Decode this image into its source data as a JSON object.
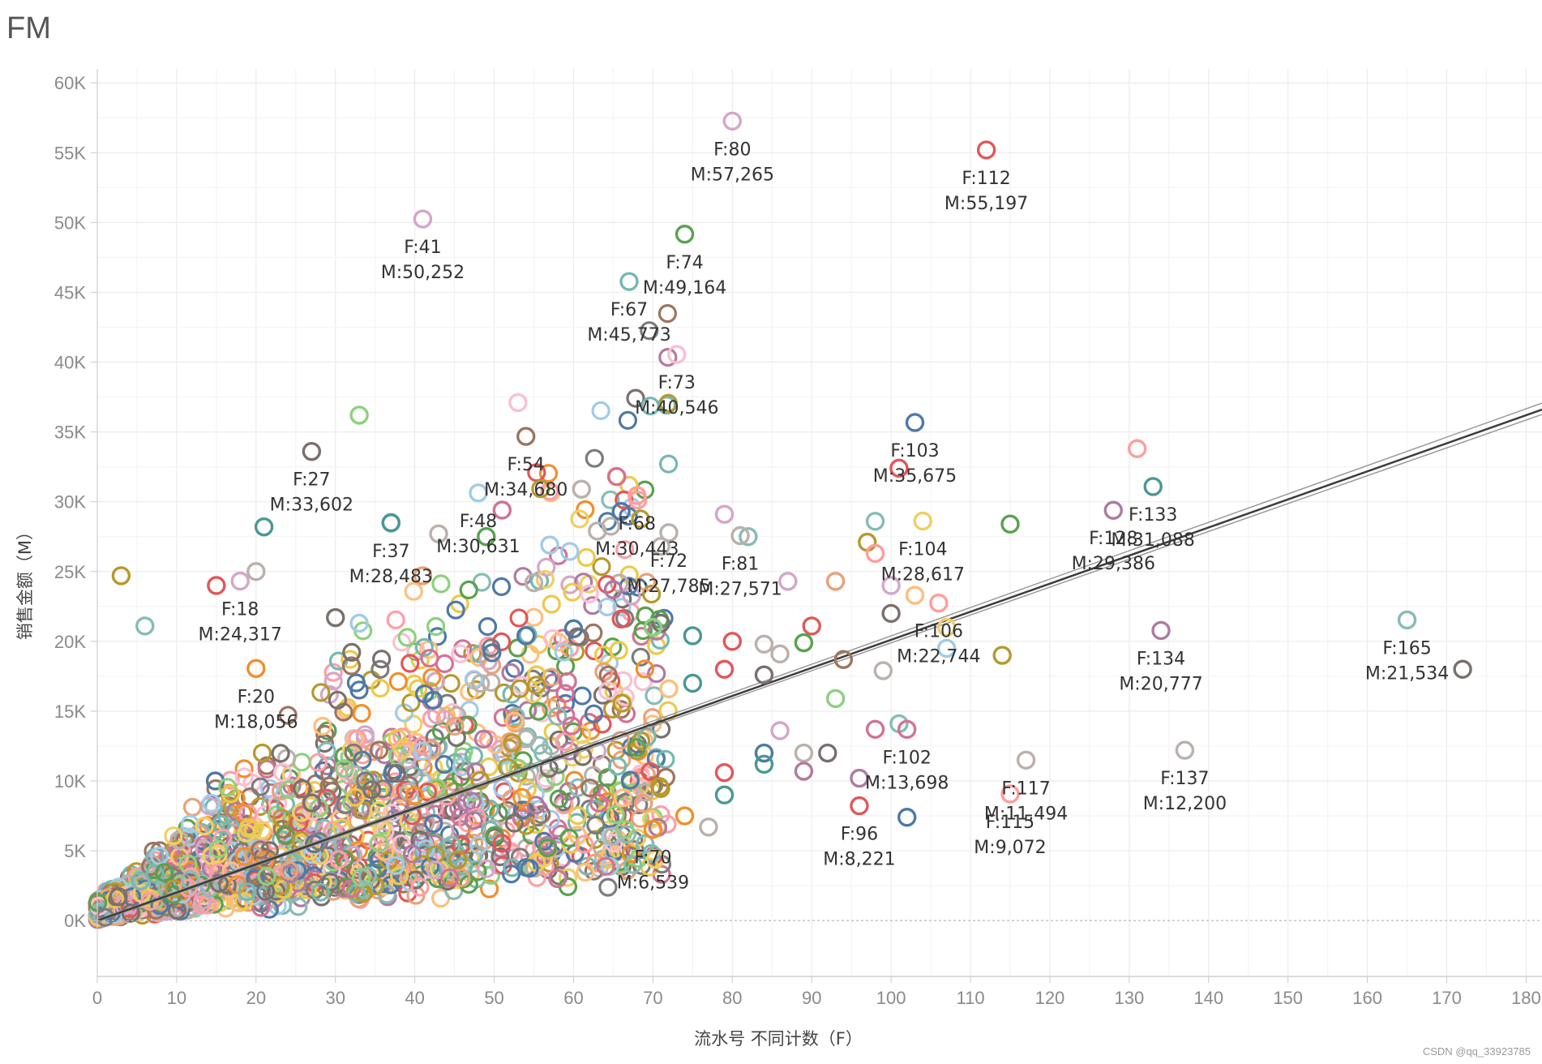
{
  "page": {
    "title": "FM",
    "watermark": "CSDN @qq_33923785"
  },
  "chart_data": {
    "type": "scatter",
    "title": "FM",
    "xlabel": "流水号 不同计数（F）",
    "ylabel": "销售金额（M）",
    "xlim": [
      0,
      182
    ],
    "ylim": [
      -4000,
      61000
    ],
    "xticks": [
      0,
      10,
      20,
      30,
      40,
      50,
      60,
      70,
      80,
      90,
      100,
      110,
      120,
      130,
      140,
      150,
      160,
      170,
      180
    ],
    "xtick_labels": [
      "0",
      "10",
      "20",
      "30",
      "40",
      "50",
      "60",
      "70",
      "80",
      "90",
      "100",
      "110",
      "120",
      "130",
      "140",
      "150",
      "160",
      "170",
      "180"
    ],
    "yticks": [
      0,
      5000,
      10000,
      15000,
      20000,
      25000,
      30000,
      35000,
      40000,
      45000,
      50000,
      55000,
      60000
    ],
    "ytick_labels": [
      "0K",
      "5K",
      "10K",
      "15K",
      "20K",
      "25K",
      "30K",
      "35K",
      "40K",
      "45K",
      "50K",
      "55K",
      "60K"
    ],
    "grid": true,
    "marker": "hollow-circle",
    "palette": [
      "#4e79a7",
      "#f28e2b",
      "#e15759",
      "#76b7b2",
      "#59a14f",
      "#edc948",
      "#b07aa1",
      "#ff9da7",
      "#9c755f",
      "#bab0ac",
      "#a0cbe8",
      "#ffbe7d",
      "#8cd17d",
      "#b6992d",
      "#f1ce63",
      "#86bcb6",
      "#d37295",
      "#fabfd2",
      "#79706e",
      "#d4a6c8",
      "#e9a17a",
      "#7c7c7c"
    ],
    "trend_line": {
      "type": "linear",
      "x": [
        0,
        182
      ],
      "y": [
        0,
        36600
      ],
      "color": "#3c3c3c",
      "band_color": "#9a9a9a"
    },
    "annotated_points": [
      {
        "f": 80,
        "m": 57265,
        "label_f": "F:80",
        "label_m": "M:57,265",
        "color": "#d4a6c8"
      },
      {
        "f": 112,
        "m": 55197,
        "label_f": "F:112",
        "label_m": "M:55,197",
        "color": "#e15759"
      },
      {
        "f": 41,
        "m": 50252,
        "label_f": "F:41",
        "label_m": "M:50,252",
        "color": "#d4a6c8"
      },
      {
        "f": 74,
        "m": 49164,
        "label_f": "F:74",
        "label_m": "M:49,164",
        "color": "#59a14f"
      },
      {
        "f": 67,
        "m": 45773,
        "label_f": "F:67",
        "label_m": "M:45,773",
        "color": "#76b7b2"
      },
      {
        "f": 73,
        "m": 40546,
        "label_f": "F:73",
        "label_m": "M:40,546",
        "color": "#fabfd2"
      },
      {
        "f": 103,
        "m": 35675,
        "label_f": "F:103",
        "label_m": "M:35,675",
        "color": "#4e79a7"
      },
      {
        "f": 54,
        "m": 34680,
        "label_f": "F:54",
        "label_m": "M:34,680",
        "color": "#9c755f"
      },
      {
        "f": 27,
        "m": 33602,
        "label_f": "F:27",
        "label_m": "M:33,602",
        "color": "#79706e"
      },
      {
        "f": 133,
        "m": 31088,
        "label_f": "F:133",
        "label_m": "M:31,088",
        "color": "#499894"
      },
      {
        "f": 48,
        "m": 30631,
        "label_f": "F:48",
        "label_m": "M:30,631",
        "color": "#a0cbe8"
      },
      {
        "f": 68,
        "m": 30443,
        "label_f": "F:68",
        "label_m": "M:30,443",
        "color": "#ff9d9a"
      },
      {
        "f": 128,
        "m": 29386,
        "label_f": "F:128",
        "label_m": "M:29,386",
        "color": "#b07aa1"
      },
      {
        "f": 104,
        "m": 28617,
        "label_f": "F:104",
        "label_m": "M:28,617",
        "color": "#f1ce63"
      },
      {
        "f": 37,
        "m": 28483,
        "label_f": "F:37",
        "label_m": "M:28,483",
        "color": "#499894"
      },
      {
        "f": 72,
        "m": 27785,
        "label_f": "F:72",
        "label_m": "M:27,785",
        "color": "#bab0ac"
      },
      {
        "f": 81,
        "m": 27571,
        "label_f": "F:81",
        "label_m": "M:27,571",
        "color": "#bab0ac"
      },
      {
        "f": 18,
        "m": 24317,
        "label_f": "F:18",
        "label_m": "M:24,317",
        "color": "#d4a6c8"
      },
      {
        "f": 106,
        "m": 22744,
        "label_f": "F:106",
        "label_m": "M:22,744",
        "color": "#ff9d9a"
      },
      {
        "f": 165,
        "m": 21534,
        "label_f": "F:165",
        "label_m": "M:21,534",
        "color": "#86bcb6"
      },
      {
        "f": 134,
        "m": 20777,
        "label_f": "F:134",
        "label_m": "M:20,777",
        "color": "#b07aa1"
      },
      {
        "f": 20,
        "m": 18056,
        "label_f": "F:20",
        "label_m": "M:18,056",
        "color": "#f28e2b"
      },
      {
        "f": 102,
        "m": 13698,
        "label_f": "F:102",
        "label_m": "M:13,698",
        "color": "#d37295"
      },
      {
        "f": 137,
        "m": 12200,
        "label_f": "F:137",
        "label_m": "M:12,200",
        "color": "#bab0ac"
      },
      {
        "f": 117,
        "m": 11494,
        "label_f": "F:117",
        "label_m": "M:11,494",
        "color": "#bab0ac"
      },
      {
        "f": 115,
        "m": 9072,
        "label_f": "F:115",
        "label_m": "M:9,072",
        "color": "#ff9d9a"
      },
      {
        "f": 96,
        "m": 8221,
        "label_f": "F:96",
        "label_m": "M:8,221",
        "color": "#e15759"
      },
      {
        "f": 70,
        "m": 6539,
        "label_f": "F:70",
        "label_m": "M:6,539",
        "color": "#f28e2b"
      }
    ],
    "outlier_points": [
      {
        "f": 172,
        "m": 18000,
        "color": "#79706e"
      },
      {
        "f": 131,
        "m": 33800,
        "color": "#ff9d9a"
      },
      {
        "f": 115,
        "m": 28400,
        "color": "#59a14f"
      },
      {
        "f": 114,
        "m": 19000,
        "color": "#b6992d"
      },
      {
        "f": 101,
        "m": 32400,
        "color": "#e15759"
      },
      {
        "f": 100,
        "m": 22000,
        "color": "#79706e"
      },
      {
        "f": 107,
        "m": 21000,
        "color": "#f1ce63"
      },
      {
        "f": 107,
        "m": 19500,
        "color": "#a0cbe8"
      },
      {
        "f": 103,
        "m": 23300,
        "color": "#ffbe7d"
      },
      {
        "f": 97,
        "m": 27100,
        "color": "#b6992d"
      },
      {
        "f": 98,
        "m": 26300,
        "color": "#ff9d9a"
      },
      {
        "f": 98,
        "m": 28600,
        "color": "#86bcb6"
      },
      {
        "f": 100,
        "m": 24000,
        "color": "#d4a6c8"
      },
      {
        "f": 99,
        "m": 17900,
        "color": "#bab0ac"
      },
      {
        "f": 98,
        "m": 13700,
        "color": "#d37295"
      },
      {
        "f": 101,
        "m": 14100,
        "color": "#86bcb6"
      },
      {
        "f": 102,
        "m": 7400,
        "color": "#4e79a7"
      },
      {
        "f": 96,
        "m": 10200,
        "color": "#b07aa1"
      },
      {
        "f": 93,
        "m": 24300,
        "color": "#e9a17a"
      },
      {
        "f": 90,
        "m": 21100,
        "color": "#e15759"
      },
      {
        "f": 89,
        "m": 19900,
        "color": "#59a14f"
      },
      {
        "f": 94,
        "m": 18700,
        "color": "#9c755f"
      },
      {
        "f": 93,
        "m": 15900,
        "color": "#8cd17d"
      },
      {
        "f": 92,
        "m": 12000,
        "color": "#79706e"
      },
      {
        "f": 89,
        "m": 12000,
        "color": "#bab0ac"
      },
      {
        "f": 89,
        "m": 10700,
        "color": "#b07aa1"
      },
      {
        "f": 87,
        "m": 24300,
        "color": "#d4a6c8"
      },
      {
        "f": 86,
        "m": 19100,
        "color": "#bab0ac"
      },
      {
        "f": 84,
        "m": 17600,
        "color": "#79706e"
      },
      {
        "f": 84,
        "m": 19800,
        "color": "#bab0ac"
      },
      {
        "f": 86,
        "m": 13600,
        "color": "#d4a6c8"
      },
      {
        "f": 84,
        "m": 12000,
        "color": "#4e79a7"
      },
      {
        "f": 84,
        "m": 11200,
        "color": "#499894"
      },
      {
        "f": 82,
        "m": 27500,
        "color": "#86bcb6"
      },
      {
        "f": 79,
        "m": 29100,
        "color": "#d4a6c8"
      },
      {
        "f": 80,
        "m": 20000,
        "color": "#e15759"
      },
      {
        "f": 79,
        "m": 18000,
        "color": "#e15759"
      },
      {
        "f": 79,
        "m": 10600,
        "color": "#e15759"
      },
      {
        "f": 79,
        "m": 9000,
        "color": "#499894"
      },
      {
        "f": 77,
        "m": 6700,
        "color": "#bab0ac"
      },
      {
        "f": 74,
        "m": 7500,
        "color": "#f28e2b"
      },
      {
        "f": 75,
        "m": 20400,
        "color": "#499894"
      },
      {
        "f": 75,
        "m": 17000,
        "color": "#499894"
      },
      {
        "f": 71,
        "m": 21300,
        "color": "#79706e"
      },
      {
        "f": 72,
        "m": 16600,
        "color": "#ffbe7d"
      },
      {
        "f": 71,
        "m": 26800,
        "color": "#bab0ac"
      },
      {
        "f": 69,
        "m": 5500,
        "color": "#86bcb6"
      },
      {
        "f": 66,
        "m": 29300,
        "color": "#4e79a7"
      },
      {
        "f": 63,
        "m": 27900,
        "color": "#bab0ac"
      },
      {
        "f": 61,
        "m": 30900,
        "color": "#bab0ac"
      },
      {
        "f": 53,
        "m": 37100,
        "color": "#fabfd2"
      },
      {
        "f": 49,
        "m": 27500,
        "color": "#59a14f"
      },
      {
        "f": 43,
        "m": 27700,
        "color": "#bab0ac"
      },
      {
        "f": 51,
        "m": 29400,
        "color": "#d37295"
      },
      {
        "f": 57,
        "m": 26900,
        "color": "#a0cbe8"
      },
      {
        "f": 37,
        "m": 28500,
        "color": "#499894"
      },
      {
        "f": 33,
        "m": 36200,
        "color": "#8cd17d"
      },
      {
        "f": 21,
        "m": 28200,
        "color": "#499894"
      },
      {
        "f": 3,
        "m": 24700,
        "color": "#b6992d"
      },
      {
        "f": 6,
        "m": 21100,
        "color": "#86bcb6"
      },
      {
        "f": 15,
        "m": 24000,
        "color": "#e15759"
      },
      {
        "f": 20,
        "m": 25000,
        "color": "#bab0ac"
      },
      {
        "f": 30,
        "m": 21700,
        "color": "#79706e"
      },
      {
        "f": 33,
        "m": 21300,
        "color": "#a0cbe8"
      },
      {
        "f": 41,
        "m": 24700,
        "color": "#e9a17a"
      },
      {
        "f": 55,
        "m": 24200,
        "color": "#bab0ac"
      },
      {
        "f": 54,
        "m": 20400,
        "color": "#4e79a7"
      },
      {
        "f": 60,
        "m": 20900,
        "color": "#4e79a7"
      },
      {
        "f": 62,
        "m": 23400,
        "color": "#fabfd2"
      },
      {
        "f": 65,
        "m": 23700,
        "color": "#b07aa1"
      },
      {
        "f": 66,
        "m": 21600,
        "color": "#e15759"
      },
      {
        "f": 70,
        "m": 21000,
        "color": "#8cd17d"
      }
    ],
    "cluster": {
      "count": 1700,
      "x_range": [
        0,
        72
      ],
      "m_per_f_center": 205,
      "m_spread": [
        0.25,
        2.2
      ]
    }
  }
}
